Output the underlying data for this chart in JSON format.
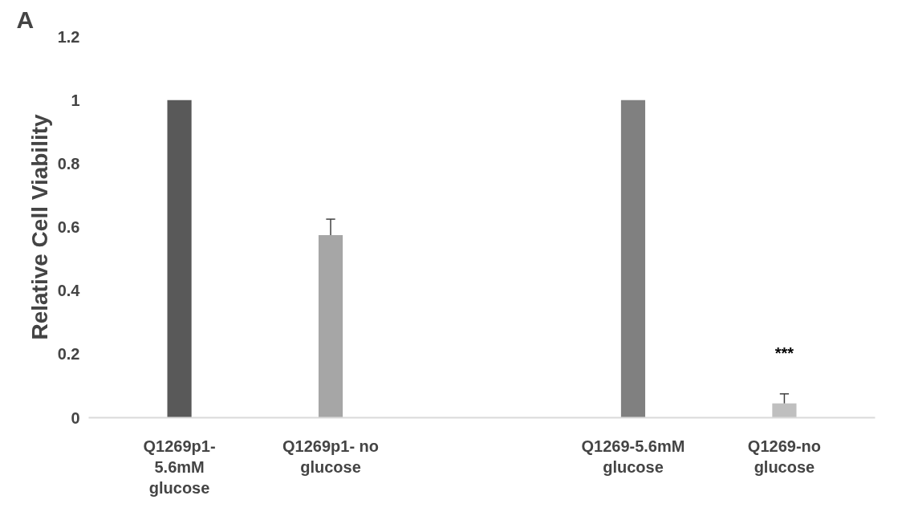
{
  "chart_data": {
    "type": "bar",
    "title": "A",
    "ylabel": "Relative Cell Viability",
    "categories": [
      "Q1269p1-5.6mM glucose",
      "Q1269p1- no glucose",
      null,
      "Q1269-5.6mM glucose",
      "Q1269-no glucose"
    ],
    "values": [
      1,
      0.575,
      null,
      1,
      0.045
    ],
    "colors": [
      "#595959",
      "#a6a6a6",
      "#ffffff",
      "#808080",
      "#bfbfbf"
    ],
    "errors": [
      null,
      [
        0.575,
        0.625
      ],
      null,
      null,
      [
        0.045,
        0.075
      ]
    ],
    "ylim": [
      0,
      1.2
    ],
    "yticks": [
      0,
      0.2,
      0.4,
      0.6,
      0.8,
      1,
      1.2
    ],
    "grid": false,
    "annotations": [
      "***"
    ]
  }
}
